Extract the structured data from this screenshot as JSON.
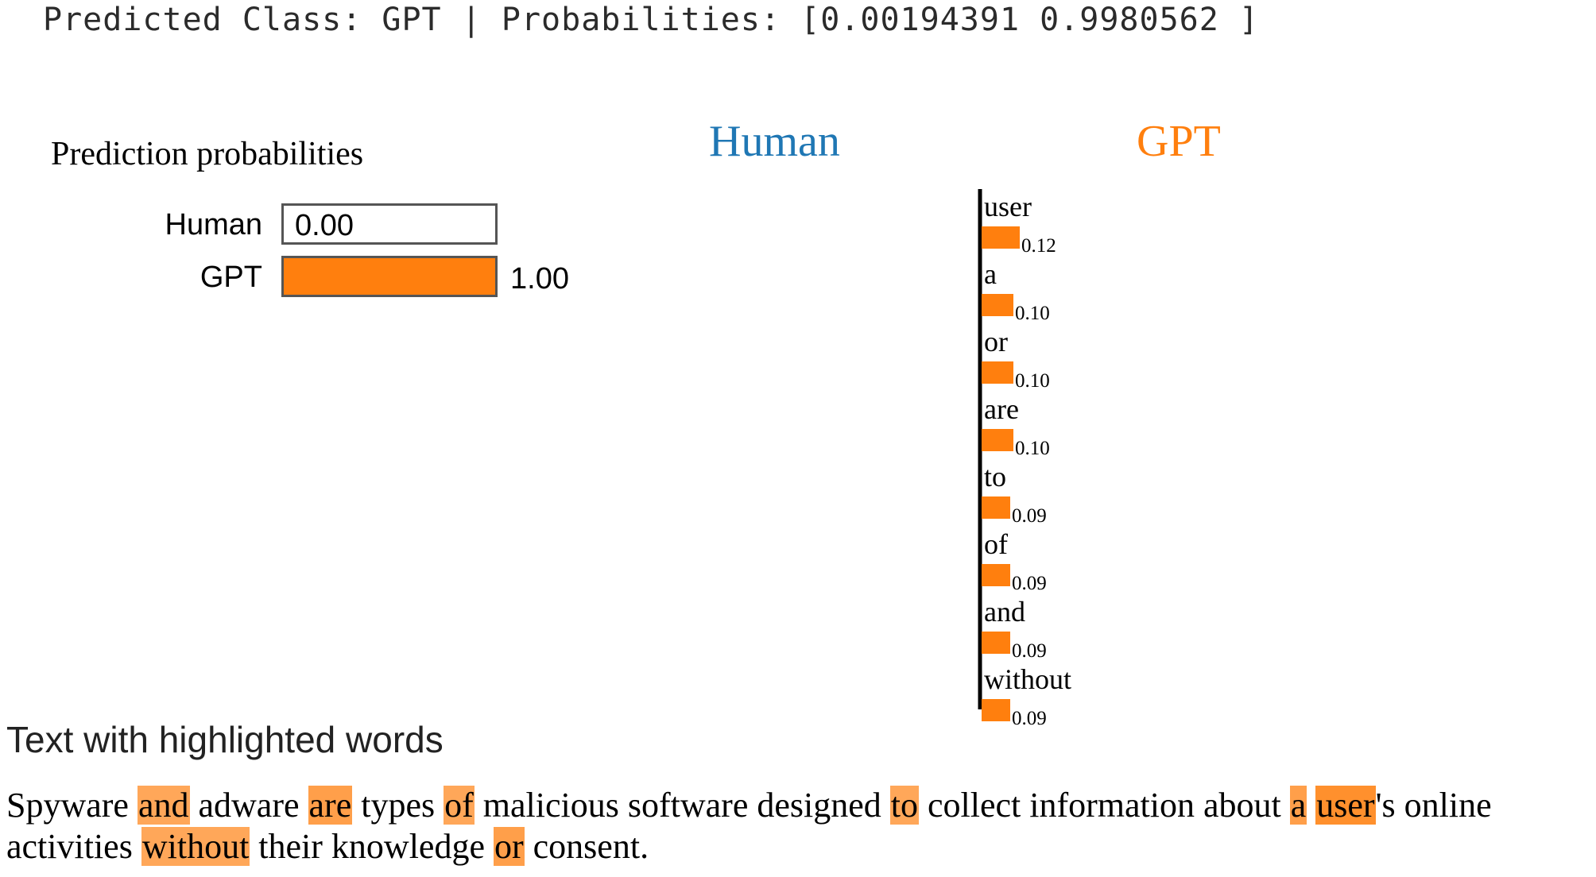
{
  "header_text": "Predicted Class: GPT | Probabilities: [0.00194391 0.9980562 ]",
  "prediction_probabilities": {
    "title": "Prediction probabilities",
    "rows": [
      {
        "label": "Human",
        "value": 0.0,
        "value_text": "0.00",
        "color": "#1f77b4"
      },
      {
        "label": "GPT",
        "value": 1.0,
        "value_text": "1.00",
        "color": "#ff7f0e"
      }
    ]
  },
  "chart_data": {
    "type": "bar",
    "class_headers": [
      {
        "label": "Human",
        "color": "#1f77b4"
      },
      {
        "label": "GPT",
        "color": "#ff7f0e"
      }
    ],
    "categories": [
      "user",
      "a",
      "or",
      "are",
      "to",
      "of",
      "and",
      "without"
    ],
    "values": [
      0.12,
      0.1,
      0.1,
      0.1,
      0.09,
      0.09,
      0.09,
      0.09
    ],
    "value_labels": [
      "0.12",
      "0.10",
      "0.10",
      "0.10",
      "0.09",
      "0.09",
      "0.09",
      "0.09"
    ],
    "bar_color": "#ff7f0e"
  },
  "highlighted_text": {
    "title": "Text with highlighted words",
    "segments": [
      {
        "text": "Spyware ",
        "weight": 0
      },
      {
        "text": "and",
        "weight": 0.09
      },
      {
        "text": " adware ",
        "weight": 0
      },
      {
        "text": "are",
        "weight": 0.1
      },
      {
        "text": " types ",
        "weight": 0
      },
      {
        "text": "of",
        "weight": 0.09
      },
      {
        "text": " malicious software designed ",
        "weight": 0
      },
      {
        "text": "to",
        "weight": 0.09
      },
      {
        "text": " collect information about ",
        "weight": 0
      },
      {
        "text": "a",
        "weight": 0.1
      },
      {
        "text": " ",
        "weight": 0
      },
      {
        "text": "user",
        "weight": 0.12
      },
      {
        "text": "'s online activities ",
        "weight": 0
      },
      {
        "text": "without",
        "weight": 0.09
      },
      {
        "text": " their knowledge ",
        "weight": 0
      },
      {
        "text": "or",
        "weight": 0.1
      },
      {
        "text": " consent.",
        "weight": 0
      }
    ]
  }
}
